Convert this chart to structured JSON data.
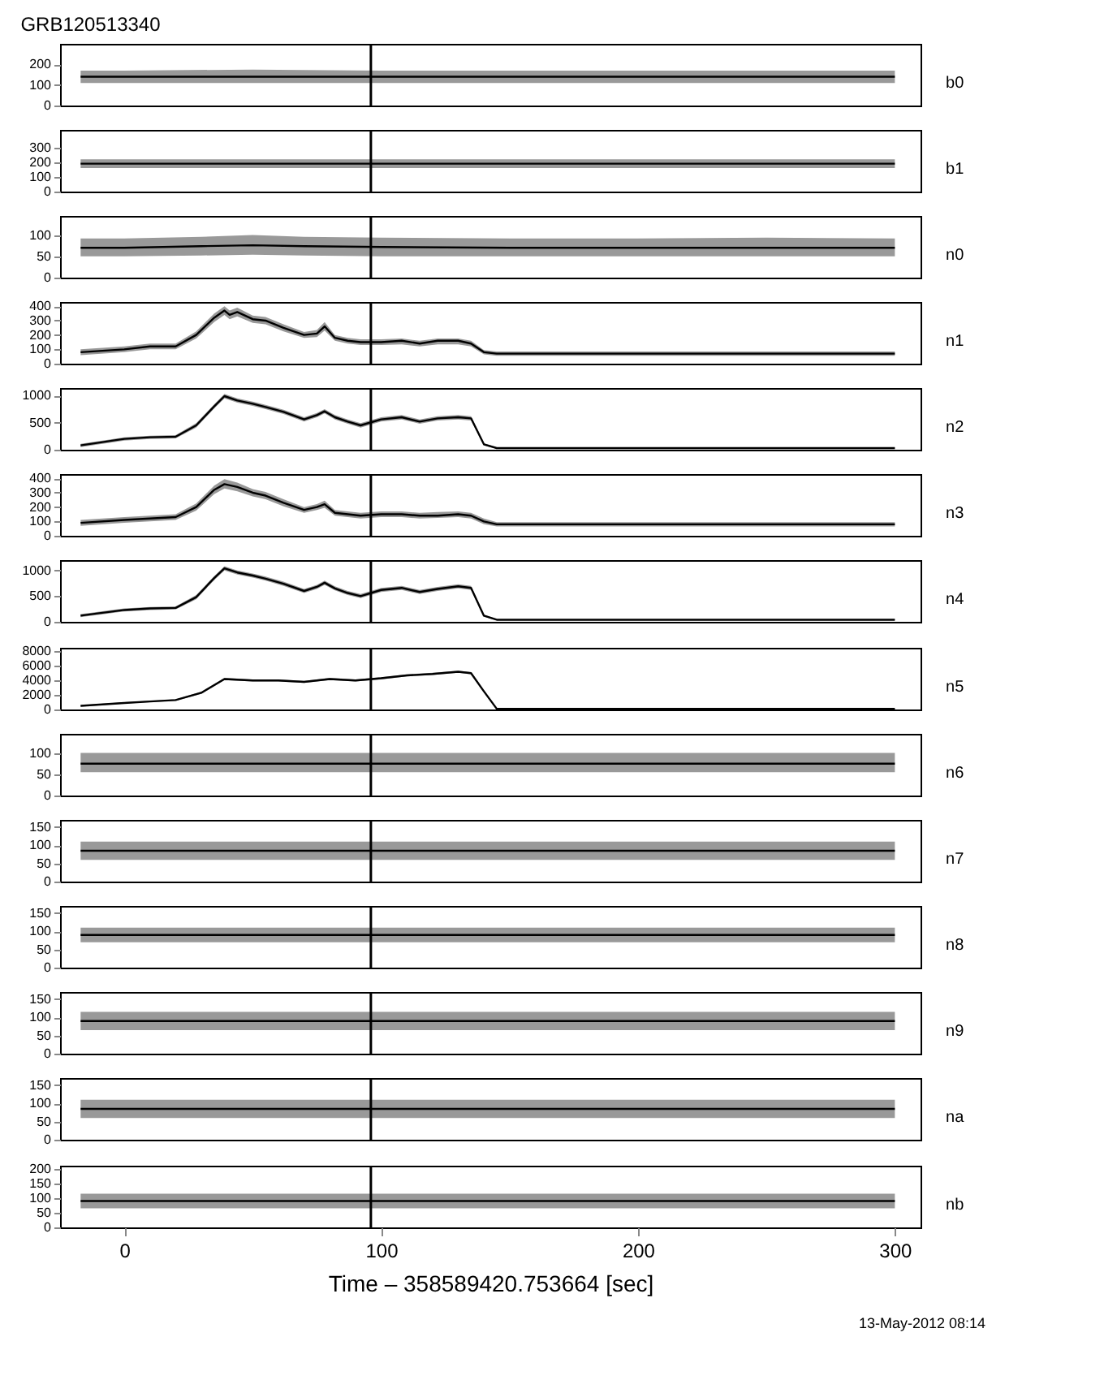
{
  "chart_data": [
    {
      "type": "line",
      "title": "GRB120513340",
      "y2label": "b0",
      "xlim": [
        -25,
        310
      ],
      "xticks": [
        0,
        100,
        200,
        300
      ],
      "ylim": [
        0,
        300
      ],
      "yticks": [
        0,
        100,
        200
      ],
      "tick_labels": "y",
      "grid": false,
      "legend": false,
      "marker": "none",
      "ref_lines": [
        {
          "axis": "x",
          "value": 96
        }
      ],
      "series": [
        {
          "color": "#000000",
          "x": [
            -17,
            0,
            50,
            100,
            150,
            200,
            250,
            300
          ],
          "values": [
            140,
            140,
            140,
            140,
            140,
            140,
            140,
            140
          ],
          "lower": [
            110,
            110,
            110,
            110,
            110,
            110,
            110,
            110
          ],
          "upper": [
            170,
            170,
            175,
            170,
            170,
            170,
            170,
            170
          ]
        }
      ]
    },
    {
      "type": "line",
      "y2label": "b1",
      "xlim": [
        -25,
        310
      ],
      "xticks": [
        0,
        100,
        200,
        300
      ],
      "ylim": [
        0,
        420
      ],
      "yticks": [
        0,
        100,
        200,
        300
      ],
      "tick_labels": "y",
      "grid": false,
      "legend": false,
      "marker": "none",
      "ref_lines": [
        {
          "axis": "x",
          "value": 96
        }
      ],
      "series": [
        {
          "color": "#000000",
          "x": [
            -17,
            0,
            50,
            100,
            150,
            200,
            250,
            300
          ],
          "values": [
            190,
            190,
            190,
            190,
            190,
            190,
            190,
            190
          ],
          "lower": [
            160,
            160,
            160,
            160,
            160,
            160,
            160,
            160
          ],
          "upper": [
            220,
            220,
            220,
            220,
            220,
            220,
            220,
            220
          ]
        }
      ]
    },
    {
      "type": "line",
      "y2label": "n0",
      "xlim": [
        -25,
        310
      ],
      "xticks": [
        0,
        100,
        200,
        300
      ],
      "ylim": [
        0,
        145
      ],
      "yticks": [
        0,
        50,
        100
      ],
      "tick_labels": "y",
      "grid": false,
      "legend": false,
      "marker": "none",
      "ref_lines": [
        {
          "axis": "x",
          "value": 96
        }
      ],
      "series": [
        {
          "color": "#000000",
          "x": [
            -17,
            0,
            30,
            50,
            70,
            100,
            150,
            200,
            250,
            300
          ],
          "values": [
            70,
            70,
            74,
            76,
            74,
            72,
            70,
            70,
            70,
            70
          ],
          "lower": [
            50,
            50,
            52,
            54,
            52,
            50,
            50,
            50,
            50,
            50
          ],
          "upper": [
            92,
            92,
            96,
            100,
            96,
            94,
            92,
            92,
            94,
            92
          ]
        }
      ]
    },
    {
      "type": "line",
      "y2label": "n1",
      "xlim": [
        -25,
        310
      ],
      "xticks": [
        0,
        100,
        200,
        300
      ],
      "ylim": [
        0,
        430
      ],
      "yticks": [
        0,
        100,
        200,
        300,
        400
      ],
      "tick_labels": "y",
      "grid": false,
      "legend": false,
      "marker": "none",
      "ref_lines": [
        {
          "axis": "x",
          "value": 96
        }
      ],
      "series": [
        {
          "color": "#000000",
          "x": [
            -17,
            0,
            10,
            20,
            28,
            35,
            39,
            41,
            44,
            50,
            55,
            62,
            70,
            75,
            78,
            82,
            87,
            92,
            100,
            108,
            115,
            122,
            130,
            135,
            140,
            145,
            150,
            200,
            250,
            300
          ],
          "values": [
            80,
            100,
            120,
            120,
            200,
            320,
            370,
            340,
            360,
            310,
            300,
            250,
            200,
            210,
            260,
            180,
            160,
            150,
            150,
            160,
            140,
            160,
            160,
            140,
            80,
            70,
            70,
            70,
            70,
            70
          ],
          "lower": [
            60,
            80,
            100,
            100,
            175,
            290,
            340,
            310,
            330,
            285,
            275,
            225,
            180,
            185,
            230,
            160,
            140,
            130,
            130,
            135,
            120,
            135,
            135,
            120,
            65,
            55,
            55,
            55,
            55,
            55
          ],
          "upper": [
            100,
            120,
            140,
            140,
            225,
            350,
            400,
            370,
            390,
            335,
            325,
            275,
            220,
            235,
            290,
            200,
            180,
            170,
            170,
            175,
            160,
            175,
            175,
            160,
            95,
            85,
            85,
            85,
            85,
            85
          ]
        }
      ]
    },
    {
      "type": "line",
      "y2label": "n2",
      "xlim": [
        -25,
        310
      ],
      "xticks": [
        0,
        100,
        200,
        300
      ],
      "ylim": [
        0,
        1140
      ],
      "yticks": [
        0,
        500,
        1000
      ],
      "tick_labels": "y",
      "grid": false,
      "legend": false,
      "marker": "none",
      "ref_lines": [
        {
          "axis": "x",
          "value": 96
        }
      ],
      "series": [
        {
          "color": "#000000",
          "x": [
            -17,
            0,
            10,
            20,
            28,
            35,
            39,
            44,
            50,
            55,
            62,
            70,
            75,
            78,
            82,
            87,
            92,
            100,
            108,
            115,
            122,
            130,
            135,
            140,
            145,
            150,
            200,
            250,
            300
          ],
          "values": [
            80,
            200,
            230,
            240,
            450,
            800,
            990,
            910,
            850,
            790,
            700,
            560,
            640,
            710,
            600,
            520,
            450,
            560,
            600,
            520,
            580,
            600,
            580,
            100,
            30,
            30,
            30,
            30,
            30
          ],
          "lower": [
            50,
            170,
            200,
            210,
            410,
            760,
            950,
            870,
            810,
            750,
            660,
            520,
            600,
            670,
            560,
            480,
            410,
            520,
            560,
            480,
            540,
            560,
            540,
            80,
            20,
            20,
            20,
            20,
            20
          ],
          "upper": [
            110,
            230,
            260,
            270,
            490,
            840,
            1030,
            950,
            890,
            830,
            740,
            600,
            680,
            750,
            640,
            560,
            490,
            600,
            640,
            560,
            620,
            640,
            620,
            120,
            40,
            40,
            40,
            40,
            40
          ]
        }
      ]
    },
    {
      "type": "line",
      "y2label": "n3",
      "xlim": [
        -25,
        310
      ],
      "xticks": [
        0,
        100,
        200,
        300
      ],
      "ylim": [
        0,
        430
      ],
      "yticks": [
        0,
        100,
        200,
        300,
        400
      ],
      "tick_labels": "y",
      "grid": false,
      "legend": false,
      "marker": "none",
      "ref_lines": [
        {
          "axis": "x",
          "value": 96
        }
      ],
      "series": [
        {
          "color": "#000000",
          "x": [
            -17,
            0,
            10,
            20,
            28,
            35,
            39,
            44,
            50,
            55,
            62,
            70,
            75,
            78,
            82,
            87,
            92,
            100,
            108,
            115,
            122,
            130,
            135,
            140,
            145,
            150,
            200,
            250,
            300
          ],
          "values": [
            90,
            110,
            120,
            130,
            200,
            320,
            360,
            340,
            300,
            280,
            230,
            180,
            200,
            220,
            160,
            150,
            140,
            150,
            150,
            140,
            140,
            150,
            140,
            100,
            80,
            80,
            80,
            80,
            80
          ],
          "lower": [
            70,
            90,
            100,
            110,
            175,
            290,
            330,
            310,
            275,
            255,
            205,
            160,
            180,
            195,
            140,
            130,
            120,
            130,
            130,
            120,
            125,
            130,
            120,
            80,
            65,
            65,
            65,
            65,
            65
          ],
          "upper": [
            110,
            130,
            140,
            150,
            225,
            350,
            395,
            370,
            325,
            305,
            255,
            200,
            220,
            245,
            180,
            170,
            160,
            170,
            170,
            160,
            165,
            170,
            160,
            120,
            95,
            95,
            95,
            95,
            95
          ]
        }
      ]
    },
    {
      "type": "line",
      "y2label": "n4",
      "xlim": [
        -25,
        310
      ],
      "xticks": [
        0,
        100,
        200,
        300
      ],
      "ylim": [
        0,
        1200
      ],
      "yticks": [
        0,
        500,
        1000
      ],
      "tick_labels": "y",
      "grid": false,
      "legend": false,
      "marker": "none",
      "ref_lines": [
        {
          "axis": "x",
          "value": 96
        }
      ],
      "series": [
        {
          "color": "#000000",
          "x": [
            -17,
            0,
            10,
            20,
            28,
            35,
            39,
            44,
            50,
            55,
            62,
            70,
            75,
            78,
            82,
            87,
            92,
            100,
            108,
            115,
            122,
            130,
            135,
            140,
            145,
            150,
            200,
            250,
            300
          ],
          "values": [
            120,
            230,
            260,
            270,
            480,
            850,
            1040,
            960,
            900,
            840,
            740,
            600,
            680,
            760,
            650,
            560,
            500,
            620,
            660,
            580,
            640,
            690,
            660,
            120,
            40,
            40,
            40,
            40,
            40
          ],
          "lower": [
            90,
            200,
            230,
            240,
            440,
            810,
            1000,
            920,
            860,
            800,
            700,
            560,
            640,
            720,
            610,
            520,
            460,
            580,
            620,
            540,
            600,
            650,
            620,
            100,
            30,
            30,
            30,
            30,
            30
          ],
          "upper": [
            150,
            260,
            290,
            300,
            520,
            890,
            1080,
            1000,
            940,
            880,
            780,
            640,
            720,
            800,
            690,
            600,
            540,
            660,
            700,
            620,
            680,
            730,
            700,
            140,
            50,
            50,
            50,
            50,
            50
          ]
        }
      ]
    },
    {
      "type": "line",
      "y2label": "n5",
      "xlim": [
        -25,
        310
      ],
      "xticks": [
        0,
        100,
        200,
        300
      ],
      "ylim": [
        0,
        8500
      ],
      "yticks": [
        0,
        2000,
        4000,
        6000,
        8000
      ],
      "tick_labels": "y",
      "grid": false,
      "legend": false,
      "marker": "none",
      "ref_lines": [
        {
          "axis": "x",
          "value": 96
        }
      ],
      "series": [
        {
          "color": "#000000",
          "x": [
            -17,
            0,
            10,
            20,
            30,
            39,
            50,
            60,
            70,
            80,
            90,
            100,
            110,
            120,
            130,
            135,
            140,
            145,
            150,
            200,
            250,
            300
          ],
          "values": [
            500,
            900,
            1100,
            1300,
            2300,
            4200,
            4000,
            4000,
            3800,
            4200,
            4000,
            4300,
            4700,
            4900,
            5200,
            5000,
            2500,
            100,
            100,
            100,
            100,
            100
          ],
          "lower": [
            400,
            800,
            1000,
            1200,
            2150,
            4050,
            3850,
            3850,
            3650,
            4050,
            3850,
            4150,
            4550,
            4750,
            5050,
            4850,
            2350,
            50,
            50,
            50,
            50,
            50
          ],
          "upper": [
            600,
            1000,
            1200,
            1400,
            2450,
            4350,
            4150,
            4150,
            3950,
            4350,
            4150,
            4450,
            4850,
            5050,
            5350,
            5150,
            2650,
            150,
            150,
            150,
            150,
            150
          ]
        }
      ]
    },
    {
      "type": "line",
      "y2label": "n6",
      "xlim": [
        -25,
        310
      ],
      "xticks": [
        0,
        100,
        200,
        300
      ],
      "ylim": [
        0,
        145
      ],
      "yticks": [
        0,
        50,
        100
      ],
      "tick_labels": "y",
      "grid": false,
      "legend": false,
      "marker": "none",
      "ref_lines": [
        {
          "axis": "x",
          "value": 96
        }
      ],
      "series": [
        {
          "color": "#000000",
          "x": [
            -17,
            0,
            50,
            100,
            150,
            200,
            250,
            300
          ],
          "values": [
            75,
            75,
            75,
            75,
            75,
            75,
            75,
            75
          ],
          "lower": [
            55,
            55,
            55,
            55,
            55,
            55,
            55,
            55
          ],
          "upper": [
            100,
            100,
            100,
            100,
            100,
            100,
            100,
            100
          ]
        }
      ]
    },
    {
      "type": "line",
      "y2label": "n7",
      "xlim": [
        -25,
        310
      ],
      "xticks": [
        0,
        100,
        200,
        300
      ],
      "ylim": [
        0,
        170
      ],
      "yticks": [
        0,
        50,
        100,
        150
      ],
      "tick_labels": "y",
      "grid": false,
      "legend": false,
      "marker": "none",
      "ref_lines": [
        {
          "axis": "x",
          "value": 96
        }
      ],
      "series": [
        {
          "color": "#000000",
          "x": [
            -17,
            0,
            50,
            100,
            150,
            200,
            250,
            300
          ],
          "values": [
            85,
            85,
            85,
            85,
            85,
            85,
            85,
            85
          ],
          "lower": [
            60,
            60,
            60,
            60,
            60,
            60,
            60,
            60
          ],
          "upper": [
            110,
            110,
            110,
            110,
            110,
            110,
            110,
            110
          ]
        }
      ]
    },
    {
      "type": "line",
      "y2label": "n8",
      "xlim": [
        -25,
        310
      ],
      "xticks": [
        0,
        100,
        200,
        300
      ],
      "ylim": [
        0,
        170
      ],
      "yticks": [
        0,
        50,
        100,
        150
      ],
      "tick_labels": "y",
      "grid": false,
      "legend": false,
      "marker": "none",
      "ref_lines": [
        {
          "axis": "x",
          "value": 96
        }
      ],
      "series": [
        {
          "color": "#000000",
          "x": [
            -17,
            0,
            50,
            100,
            150,
            200,
            250,
            300
          ],
          "values": [
            90,
            90,
            90,
            90,
            90,
            90,
            90,
            90
          ],
          "lower": [
            70,
            70,
            70,
            70,
            70,
            70,
            70,
            70
          ],
          "upper": [
            110,
            110,
            110,
            110,
            110,
            110,
            110,
            110
          ]
        }
      ]
    },
    {
      "type": "line",
      "y2label": "n9",
      "xlim": [
        -25,
        310
      ],
      "xticks": [
        0,
        100,
        200,
        300
      ],
      "ylim": [
        0,
        170
      ],
      "yticks": [
        0,
        50,
        100,
        150
      ],
      "tick_labels": "y",
      "grid": false,
      "legend": false,
      "marker": "none",
      "ref_lines": [
        {
          "axis": "x",
          "value": 96
        }
      ],
      "series": [
        {
          "color": "#000000",
          "x": [
            -17,
            0,
            50,
            100,
            150,
            200,
            250,
            300
          ],
          "values": [
            90,
            90,
            90,
            90,
            90,
            90,
            90,
            90
          ],
          "lower": [
            65,
            65,
            65,
            65,
            65,
            65,
            65,
            65
          ],
          "upper": [
            115,
            115,
            115,
            115,
            115,
            115,
            115,
            115
          ]
        }
      ]
    },
    {
      "type": "line",
      "y2label": "na",
      "xlim": [
        -25,
        310
      ],
      "xticks": [
        0,
        100,
        200,
        300
      ],
      "ylim": [
        0,
        170
      ],
      "yticks": [
        0,
        50,
        100,
        150
      ],
      "tick_labels": "y",
      "grid": false,
      "legend": false,
      "marker": "none",
      "ref_lines": [
        {
          "axis": "x",
          "value": 96
        }
      ],
      "series": [
        {
          "color": "#000000",
          "x": [
            -17,
            0,
            50,
            100,
            150,
            200,
            250,
            300
          ],
          "values": [
            85,
            85,
            85,
            85,
            85,
            85,
            85,
            85
          ],
          "lower": [
            60,
            60,
            60,
            60,
            60,
            60,
            60,
            60
          ],
          "upper": [
            110,
            110,
            110,
            110,
            110,
            110,
            110,
            110
          ]
        }
      ]
    },
    {
      "type": "line",
      "y2label": "nb",
      "xlabel": "Time – 358589420.753664 [sec]",
      "annotations": [
        "13-May-2012 08:14"
      ],
      "xlim": [
        -25,
        310
      ],
      "xticks": [
        0,
        100,
        200,
        300
      ],
      "ylim": [
        0,
        210
      ],
      "yticks": [
        0,
        50,
        100,
        150,
        200
      ],
      "grid": false,
      "legend": false,
      "marker": "none",
      "ref_lines": [
        {
          "axis": "x",
          "value": 96
        }
      ],
      "series": [
        {
          "color": "#000000",
          "x": [
            -17,
            0,
            50,
            100,
            150,
            200,
            250,
            300
          ],
          "values": [
            90,
            90,
            90,
            90,
            90,
            90,
            90,
            90
          ],
          "lower": [
            65,
            65,
            65,
            65,
            65,
            65,
            65,
            65
          ],
          "upper": [
            115,
            115,
            115,
            115,
            115,
            115,
            115,
            115
          ]
        }
      ]
    }
  ]
}
